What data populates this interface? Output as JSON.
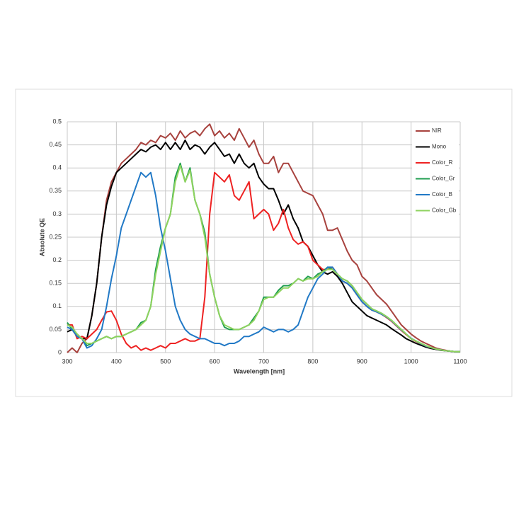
{
  "chart_data": {
    "type": "line",
    "x_label": "Wavelength [nm]",
    "y_label": "Absolute QE",
    "xlim": [
      300,
      1100
    ],
    "ylim": [
      0,
      0.5
    ],
    "xticks": [
      300,
      400,
      500,
      600,
      700,
      800,
      900,
      1000,
      1100
    ],
    "yticks": [
      0,
      0.05,
      0.1,
      0.15,
      0.2,
      0.25,
      0.3,
      0.35,
      0.4,
      0.45,
      0.5
    ],
    "grid": true,
    "legend": "upper right",
    "x": [
      300,
      310,
      320,
      330,
      340,
      350,
      360,
      370,
      380,
      390,
      400,
      410,
      420,
      430,
      440,
      450,
      460,
      470,
      480,
      490,
      500,
      510,
      520,
      530,
      540,
      550,
      560,
      570,
      580,
      590,
      600,
      610,
      620,
      630,
      640,
      650,
      660,
      670,
      680,
      690,
      700,
      710,
      720,
      730,
      740,
      750,
      760,
      770,
      780,
      790,
      800,
      810,
      820,
      830,
      840,
      850,
      860,
      870,
      880,
      890,
      900,
      910,
      920,
      930,
      940,
      950,
      960,
      970,
      980,
      990,
      1000,
      1010,
      1020,
      1030,
      1040,
      1050,
      1060,
      1070,
      1080,
      1090,
      1100
    ],
    "series": [
      {
        "name": "NIR",
        "color": "#a8423e",
        "values": [
          0.0,
          0.01,
          0.0,
          0.02,
          0.03,
          0.08,
          0.15,
          0.25,
          0.33,
          0.37,
          0.39,
          0.41,
          0.42,
          0.43,
          0.44,
          0.455,
          0.45,
          0.46,
          0.455,
          0.47,
          0.465,
          0.475,
          0.46,
          0.48,
          0.465,
          0.475,
          0.48,
          0.47,
          0.485,
          0.495,
          0.47,
          0.48,
          0.465,
          0.475,
          0.46,
          0.485,
          0.465,
          0.445,
          0.46,
          0.43,
          0.41,
          0.41,
          0.425,
          0.39,
          0.41,
          0.41,
          0.39,
          0.37,
          0.35,
          0.345,
          0.34,
          0.32,
          0.3,
          0.265,
          0.265,
          0.27,
          0.245,
          0.22,
          0.2,
          0.19,
          0.165,
          0.155,
          0.14,
          0.125,
          0.115,
          0.105,
          0.09,
          0.075,
          0.06,
          0.05,
          0.04,
          0.032,
          0.025,
          0.02,
          0.015,
          0.01,
          0.007,
          0.005,
          0.003,
          0.002,
          0.002
        ]
      },
      {
        "name": "Mono",
        "color": "#000000",
        "values": [
          0.045,
          0.05,
          0.035,
          0.03,
          0.03,
          0.08,
          0.15,
          0.25,
          0.32,
          0.36,
          0.39,
          0.4,
          0.41,
          0.42,
          0.43,
          0.44,
          0.435,
          0.445,
          0.45,
          0.44,
          0.455,
          0.44,
          0.455,
          0.44,
          0.46,
          0.44,
          0.45,
          0.445,
          0.43,
          0.445,
          0.455,
          0.44,
          0.425,
          0.43,
          0.41,
          0.43,
          0.41,
          0.4,
          0.41,
          0.38,
          0.365,
          0.355,
          0.355,
          0.33,
          0.3,
          0.32,
          0.29,
          0.27,
          0.24,
          0.23,
          0.21,
          0.19,
          0.175,
          0.17,
          0.175,
          0.165,
          0.15,
          0.13,
          0.11,
          0.1,
          0.09,
          0.08,
          0.075,
          0.07,
          0.065,
          0.06,
          0.052,
          0.045,
          0.038,
          0.03,
          0.025,
          0.02,
          0.016,
          0.012,
          0.009,
          0.007,
          0.005,
          0.004,
          0.003,
          0.002,
          0.002
        ]
      },
      {
        "name": "Color_R",
        "color": "#ee2222",
        "values": [
          0.06,
          0.06,
          0.03,
          0.035,
          0.03,
          0.04,
          0.05,
          0.07,
          0.088,
          0.09,
          0.07,
          0.04,
          0.02,
          0.01,
          0.015,
          0.005,
          0.01,
          0.005,
          0.01,
          0.015,
          0.01,
          0.02,
          0.02,
          0.025,
          0.03,
          0.025,
          0.025,
          0.03,
          0.12,
          0.3,
          0.39,
          0.38,
          0.37,
          0.385,
          0.34,
          0.33,
          0.35,
          0.37,
          0.29,
          0.3,
          0.31,
          0.3,
          0.265,
          0.28,
          0.31,
          0.27,
          0.245,
          0.235,
          0.24,
          0.23,
          0.2,
          0.19,
          0.18,
          0.18,
          0.185,
          0.17,
          0.155,
          0.15,
          0.14,
          0.125,
          0.11,
          0.1,
          0.092,
          0.088,
          0.083,
          0.076,
          0.068,
          0.058,
          0.048,
          0.039,
          0.03,
          0.024,
          0.019,
          0.014,
          0.011,
          0.008,
          0.006,
          0.004,
          0.003,
          0.002,
          0.002
        ]
      },
      {
        "name": "Color_Gr",
        "color": "#1f9e4f",
        "values": [
          0.065,
          0.05,
          0.04,
          0.03,
          0.015,
          0.02,
          0.025,
          0.03,
          0.035,
          0.03,
          0.035,
          0.035,
          0.04,
          0.045,
          0.05,
          0.065,
          0.07,
          0.1,
          0.18,
          0.23,
          0.27,
          0.3,
          0.38,
          0.41,
          0.37,
          0.4,
          0.33,
          0.3,
          0.26,
          0.17,
          0.12,
          0.08,
          0.055,
          0.05,
          0.05,
          0.05,
          0.055,
          0.06,
          0.075,
          0.09,
          0.12,
          0.12,
          0.12,
          0.135,
          0.145,
          0.145,
          0.15,
          0.16,
          0.155,
          0.165,
          0.16,
          0.17,
          0.175,
          0.185,
          0.18,
          0.17,
          0.16,
          0.155,
          0.145,
          0.13,
          0.115,
          0.105,
          0.095,
          0.09,
          0.085,
          0.078,
          0.07,
          0.06,
          0.05,
          0.04,
          0.03,
          0.025,
          0.02,
          0.015,
          0.011,
          0.008,
          0.006,
          0.004,
          0.003,
          0.002,
          0.002
        ]
      },
      {
        "name": "Color_B",
        "color": "#2179c6",
        "values": [
          0.055,
          0.05,
          0.035,
          0.03,
          0.01,
          0.015,
          0.03,
          0.05,
          0.1,
          0.16,
          0.21,
          0.27,
          0.3,
          0.33,
          0.36,
          0.39,
          0.38,
          0.39,
          0.34,
          0.27,
          0.22,
          0.16,
          0.1,
          0.07,
          0.05,
          0.04,
          0.035,
          0.03,
          0.03,
          0.025,
          0.02,
          0.02,
          0.015,
          0.02,
          0.02,
          0.025,
          0.035,
          0.035,
          0.04,
          0.045,
          0.055,
          0.05,
          0.045,
          0.05,
          0.05,
          0.045,
          0.05,
          0.06,
          0.09,
          0.12,
          0.14,
          0.16,
          0.17,
          0.185,
          0.185,
          0.17,
          0.155,
          0.15,
          0.14,
          0.125,
          0.11,
          0.1,
          0.092,
          0.088,
          0.083,
          0.077,
          0.069,
          0.059,
          0.049,
          0.04,
          0.031,
          0.025,
          0.019,
          0.014,
          0.011,
          0.008,
          0.006,
          0.004,
          0.003,
          0.002,
          0.002
        ]
      },
      {
        "name": "Color_Gb",
        "color": "#8fd35f",
        "values": [
          0.06,
          0.055,
          0.04,
          0.03,
          0.02,
          0.02,
          0.025,
          0.03,
          0.035,
          0.03,
          0.035,
          0.035,
          0.04,
          0.045,
          0.05,
          0.06,
          0.07,
          0.1,
          0.17,
          0.22,
          0.27,
          0.3,
          0.37,
          0.405,
          0.37,
          0.395,
          0.33,
          0.3,
          0.25,
          0.17,
          0.12,
          0.08,
          0.06,
          0.055,
          0.05,
          0.05,
          0.055,
          0.06,
          0.07,
          0.09,
          0.115,
          0.12,
          0.12,
          0.13,
          0.14,
          0.14,
          0.15,
          0.16,
          0.155,
          0.16,
          0.16,
          0.165,
          0.175,
          0.18,
          0.18,
          0.17,
          0.16,
          0.155,
          0.145,
          0.13,
          0.115,
          0.105,
          0.095,
          0.09,
          0.085,
          0.078,
          0.07,
          0.06,
          0.05,
          0.04,
          0.03,
          0.025,
          0.02,
          0.015,
          0.011,
          0.008,
          0.006,
          0.004,
          0.003,
          0.002,
          0.002
        ]
      }
    ]
  }
}
